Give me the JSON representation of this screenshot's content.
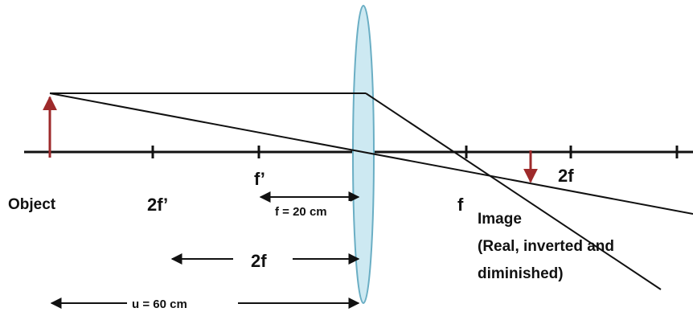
{
  "labels": {
    "object": "Object",
    "two_f_prime": "2f’",
    "f_prime": "f’",
    "f": "f",
    "two_f_right": "2f",
    "focal_length": "f = 20 cm",
    "two_f_span": "2f",
    "object_distance": "u = 60 cm",
    "image_title": "Image",
    "image_desc_line1": "(Real, inverted and",
    "image_desc_line2": "diminished)"
  },
  "colors": {
    "ray": "#1a1a1a",
    "object_arrow": "#9e2a2b",
    "image_arrow": "#9e2a2b",
    "lens_fill": "#cde9f2",
    "lens_stroke": "#6aaec4"
  }
}
